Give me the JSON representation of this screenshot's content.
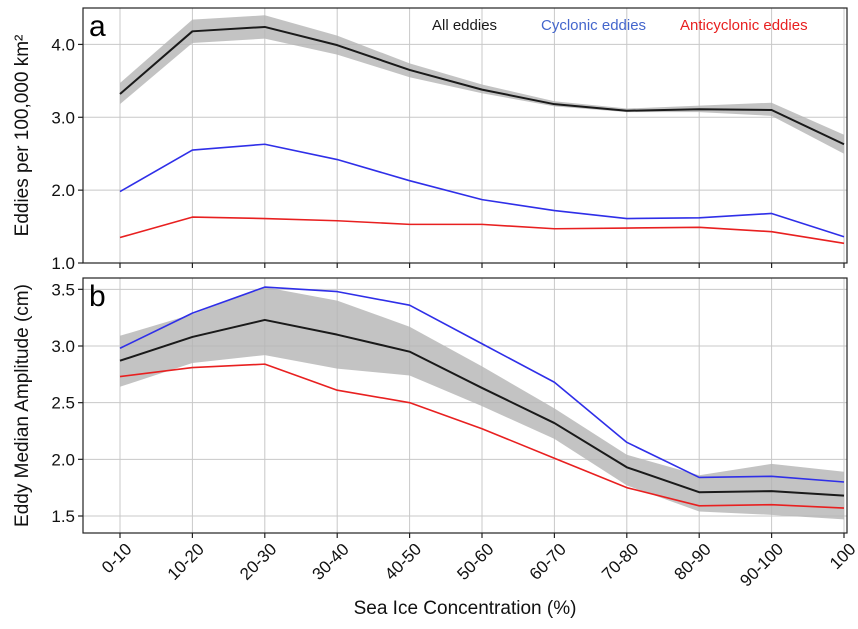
{
  "colors": {
    "all": "#1a1a1a",
    "cyclonic": "#2f2fe8",
    "anticyclonic": "#e82020",
    "band": "#b4b4b4",
    "legend_cyclonic": "#4466cc",
    "legend_anticyclonic": "#e82020"
  },
  "chart_data": {
    "type": "line",
    "xlabel": "Sea Ice Concentration (%)",
    "categories": [
      "0-10",
      "10-20",
      "20-30",
      "30-40",
      "40-50",
      "50-60",
      "60-70",
      "70-80",
      "80-90",
      "90-100",
      "100"
    ],
    "panels": [
      {
        "letter": "a",
        "ylabel": "Eddies per 100,000 km²",
        "ylim": [
          1.0,
          4.5
        ],
        "yticks": [
          1.0,
          2.0,
          3.0,
          4.0
        ],
        "ytick_labels": [
          "1.0",
          "2.0",
          "3.0",
          "4.0"
        ],
        "grid": true,
        "legend_placement": "top-right",
        "series": [
          {
            "name": "All eddies",
            "key": "all",
            "values": [
              3.32,
              4.18,
              4.24,
              3.99,
              3.65,
              3.38,
              3.18,
              3.09,
              3.11,
              3.1,
              2.63
            ],
            "band_low": [
              3.18,
              4.02,
              4.08,
              3.86,
              3.55,
              3.33,
              3.15,
              3.07,
              3.07,
              3.02,
              2.5
            ],
            "band_high": [
              3.47,
              4.34,
              4.4,
              4.12,
              3.74,
              3.45,
              3.22,
              3.12,
              3.16,
              3.2,
              2.76
            ]
          },
          {
            "name": "Cyclonic eddies",
            "key": "cyclonic",
            "values": [
              1.98,
              2.55,
              2.63,
              2.42,
              2.13,
              1.87,
              1.72,
              1.61,
              1.62,
              1.68,
              1.36
            ]
          },
          {
            "name": "Anticyclonic eddies",
            "key": "anticyclonic",
            "values": [
              1.35,
              1.63,
              1.61,
              1.58,
              1.53,
              1.53,
              1.47,
              1.48,
              1.49,
              1.43,
              1.27
            ]
          }
        ]
      },
      {
        "letter": "b",
        "ylabel": "Eddy Median Amplitude (cm)",
        "ylim": [
          1.35,
          3.6
        ],
        "yticks": [
          1.5,
          2.0,
          2.5,
          3.0,
          3.5
        ],
        "ytick_labels": [
          "1.5",
          "2.0",
          "2.5",
          "3.0",
          "3.5"
        ],
        "grid": true,
        "series": [
          {
            "name": "All eddies",
            "key": "all",
            "values": [
              2.87,
              3.08,
              3.23,
              3.1,
              2.95,
              2.63,
              2.32,
              1.93,
              1.71,
              1.72,
              1.68
            ],
            "band_low": [
              2.64,
              2.85,
              2.92,
              2.8,
              2.74,
              2.47,
              2.18,
              1.77,
              1.54,
              1.51,
              1.47
            ],
            "band_high": [
              3.09,
              3.28,
              3.52,
              3.4,
              3.17,
              2.82,
              2.45,
              2.04,
              1.86,
              1.96,
              1.89
            ]
          },
          {
            "name": "Cyclonic eddies",
            "key": "cyclonic",
            "values": [
              2.98,
              3.29,
              3.52,
              3.48,
              3.36,
              3.02,
              2.68,
              2.15,
              1.84,
              1.85,
              1.8
            ]
          },
          {
            "name": "Anticyclonic eddies",
            "key": "anticyclonic",
            "values": [
              2.73,
              2.81,
              2.84,
              2.61,
              2.5,
              2.27,
              2.01,
              1.75,
              1.59,
              1.6,
              1.57
            ]
          }
        ]
      }
    ]
  }
}
